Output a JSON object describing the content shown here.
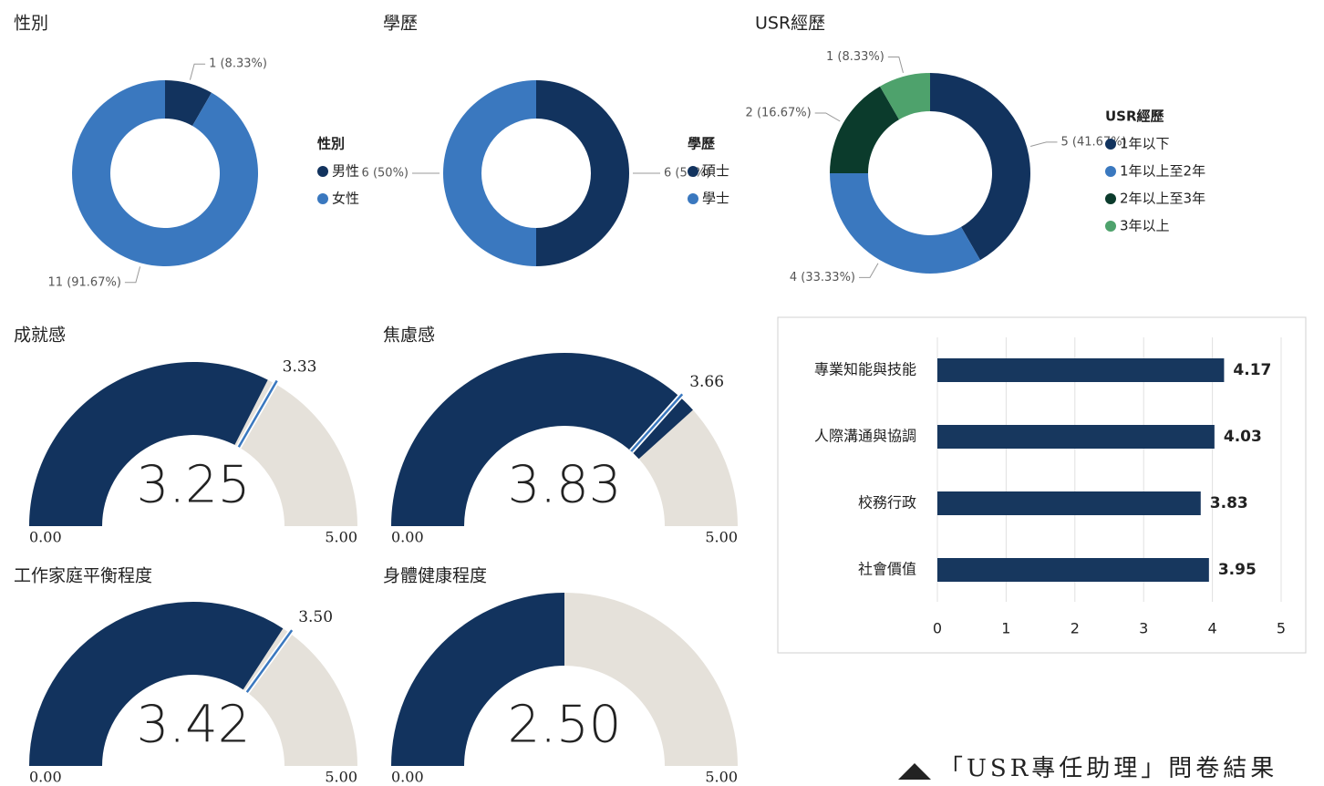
{
  "chart_data": [
    {
      "type": "donut",
      "title": "性別",
      "legend_title": "性別",
      "categories": [
        "男性",
        "女性"
      ],
      "values": [
        1,
        11
      ],
      "value_labels": [
        "1 (8.33%)",
        "11 (91.67%)"
      ],
      "colors": [
        "#12335e",
        "#3a78bf"
      ]
    },
    {
      "type": "donut",
      "title": "學歷",
      "legend_title": "學歷",
      "categories": [
        "碩士",
        "學士"
      ],
      "values": [
        6,
        6
      ],
      "value_labels": [
        "6 (50%)",
        "6 (50%)"
      ],
      "colors": [
        "#12335e",
        "#3a78bf"
      ]
    },
    {
      "type": "donut",
      "title": "USR經歷",
      "legend_title": "USR經歷",
      "categories": [
        "1年以下",
        "1年以上至2年",
        "2年以上至3年",
        "3年以上"
      ],
      "values": [
        5,
        4,
        2,
        1
      ],
      "value_labels": [
        "5 (41.67%)",
        "4 (33.33%)",
        "2 (16.67%)",
        "1 (8.33%)"
      ],
      "colors": [
        "#12335e",
        "#3a78bf",
        "#0b3b2c",
        "#4ea26c"
      ]
    },
    {
      "type": "gauge",
      "title": "成就感",
      "value": 3.25,
      "target": 3.33,
      "ylim": [
        0,
        5
      ],
      "yticks": [
        {
          "value": 0,
          "label": "0.00"
        },
        {
          "value": 5,
          "label": "5.00"
        }
      ],
      "color": "#12335e",
      "track_color": "#e5e1da",
      "target_color": "#3a78bf"
    },
    {
      "type": "gauge",
      "title": "焦慮感",
      "value": 3.83,
      "target": 3.66,
      "ylim": [
        0,
        5
      ],
      "yticks": [
        {
          "value": 0,
          "label": "0.00"
        },
        {
          "value": 5,
          "label": "5.00"
        }
      ],
      "color": "#12335e",
      "track_color": "#e5e1da",
      "target_color": "#3a78bf"
    },
    {
      "type": "gauge",
      "title": "工作家庭平衡程度",
      "value": 3.42,
      "target": 3.5,
      "target_label": "3.50",
      "ylim": [
        0,
        5
      ],
      "yticks": [
        {
          "value": 0,
          "label": "0.00"
        },
        {
          "value": 5,
          "label": "5.00"
        }
      ],
      "color": "#12335e",
      "track_color": "#e5e1da",
      "target_color": "#3a78bf"
    },
    {
      "type": "gauge",
      "title": "身體健康程度",
      "value": 2.5,
      "value_label": "2.50",
      "ylim": [
        0,
        5
      ],
      "yticks": [
        {
          "value": 0,
          "label": "0.00"
        },
        {
          "value": 5,
          "label": "5.00"
        }
      ],
      "color": "#12335e",
      "track_color": "#e5e1da",
      "target_color": "#3a78bf"
    },
    {
      "type": "hbar",
      "categories": [
        "專業知能與技能",
        "人際溝通與協調",
        "校務行政",
        "社會價值"
      ],
      "values": [
        4.17,
        4.03,
        3.83,
        3.95
      ],
      "xlim": [
        0,
        5
      ],
      "xticks": [
        0,
        1,
        2,
        3,
        4,
        5
      ],
      "grid": true,
      "color": "#17375e"
    }
  ],
  "caption": "「USR專任助理」問卷結果"
}
